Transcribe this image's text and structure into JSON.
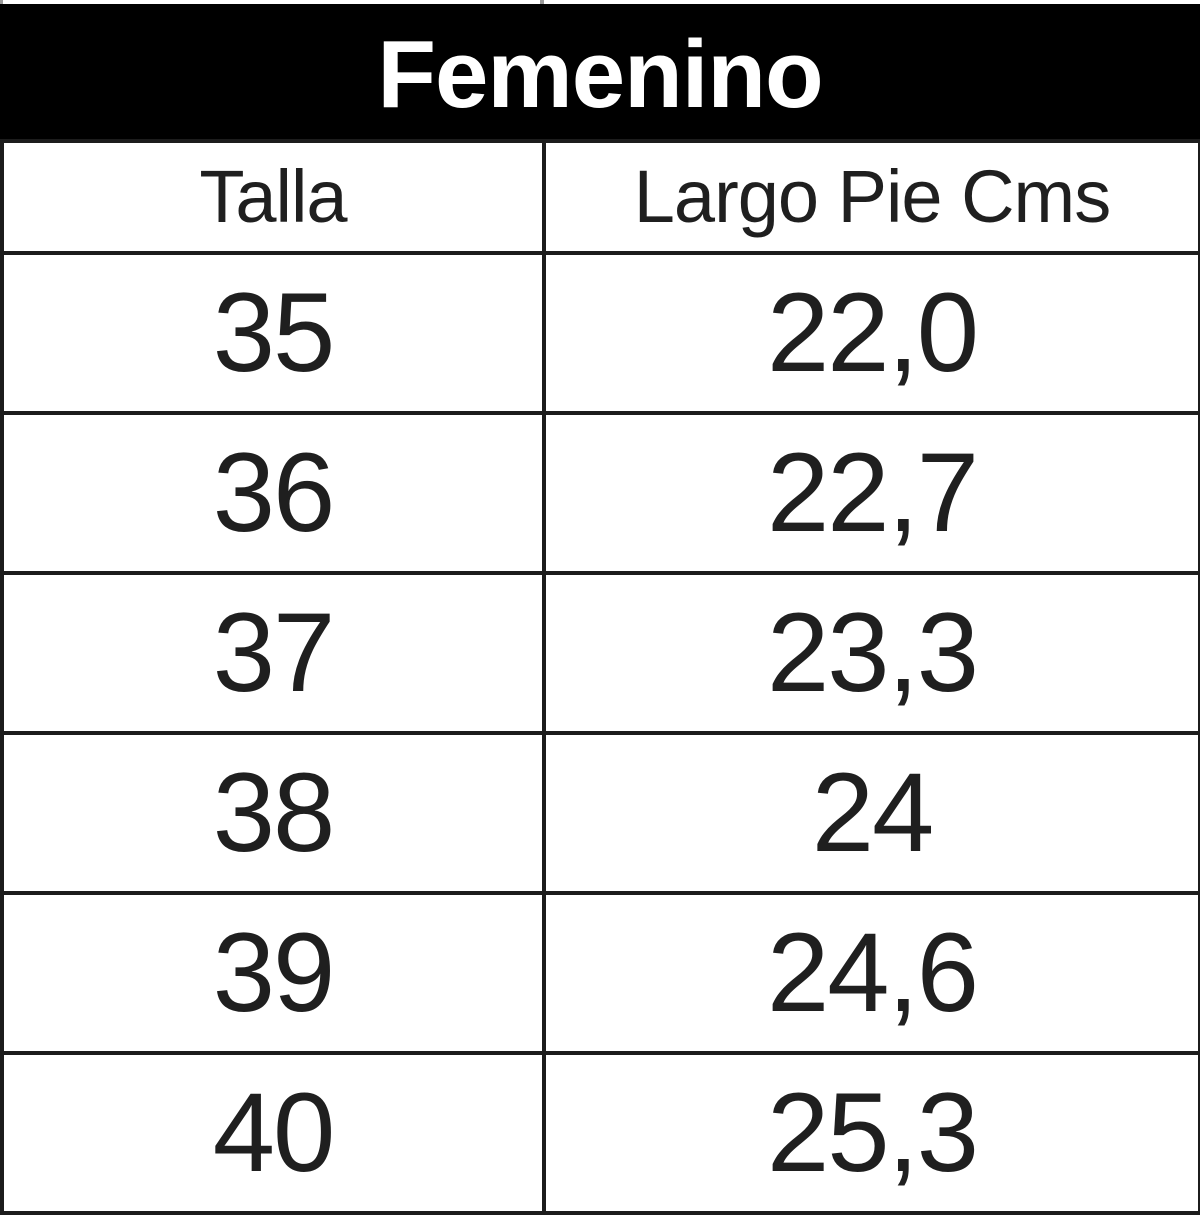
{
  "chart_data": {
    "type": "table",
    "title": "Femenino",
    "columns": [
      "Talla",
      "Largo Pie Cms"
    ],
    "rows": [
      {
        "talla": "35",
        "largo_pie_cms": "22,0"
      },
      {
        "talla": "36",
        "largo_pie_cms": "22,7"
      },
      {
        "talla": "37",
        "largo_pie_cms": "23,3"
      },
      {
        "talla": "38",
        "largo_pie_cms": "24"
      },
      {
        "talla": "39",
        "largo_pie_cms": "24,6"
      },
      {
        "talla": "40",
        "largo_pie_cms": "25,3"
      }
    ]
  },
  "colors": {
    "header_bg": "#000000",
    "header_text": "#ffffff",
    "border": "#1c1c1c",
    "cell_bg": "#ffffff",
    "cell_text": "#1f1f1f",
    "tick": "#9a9a9a"
  }
}
